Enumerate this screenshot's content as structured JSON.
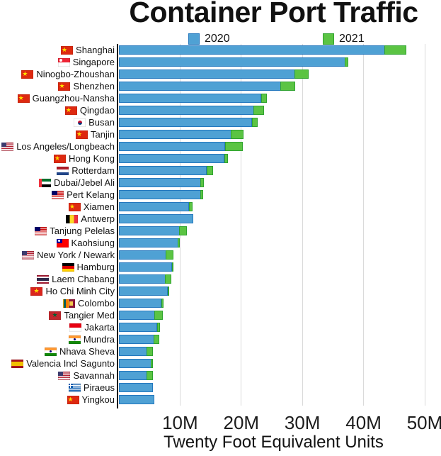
{
  "title": "Container Port Traffic",
  "legend": {
    "items": [
      {
        "label": "2020",
        "color": "#4FA1D4",
        "border": "#2478BE"
      },
      {
        "label": "2021",
        "color": "#5BC443",
        "border": "#2FA32F"
      }
    ]
  },
  "xlabel": "Twenty Foot Equivalent Units",
  "colors": {
    "bar_2020_fill": "#4FA1D4",
    "bar_2020_border": "#2478BE",
    "bar_2021_fill": "#5BC443",
    "bar_2021_border": "#2FA32F",
    "gridline": "#DADADA",
    "axis": "#1A1A1A"
  },
  "chart_data": {
    "type": "bar",
    "orientation": "horizontal",
    "title": "Container Port Traffic",
    "xlabel": "Twenty Foot Equivalent Units",
    "units": "millions of TEU",
    "xlim_m": [
      0,
      50
    ],
    "x_ticks": [
      {
        "label": "10M",
        "value": 10
      },
      {
        "label": "20M",
        "value": 20
      },
      {
        "label": "30M",
        "value": 30
      },
      {
        "label": "40M",
        "value": 40
      },
      {
        "label": "50M",
        "value": 50
      }
    ],
    "grid": true,
    "legend_position": "top",
    "bar_style": "2020 blue bar with green increment segment up to 2021 value",
    "categories": [
      "Shanghai",
      "Singapore",
      "Ninogbo-Zhoushan",
      "Shenzhen",
      "Guangzhou-Nansha",
      "Qingdao",
      "Busan",
      "Tanjin",
      "Los Angeles/Longbeach",
      "Hong Kong",
      "Rotterdam",
      "Dubai/Jebel Ali",
      "Pert Kelang",
      "Xiamen",
      "Antwerp",
      "Tanjung Pelelas",
      "Kaohsiung",
      "New York / Newark",
      "Hamburg",
      "Laem Chabang",
      "Ho Chi Minh City",
      "Colombo",
      "Tangier Med",
      "Jakarta",
      "Mundra",
      "Nhava Sheva",
      "Valencia Incl Sagunto",
      "Savannah",
      "Piraeus",
      "Yingkou"
    ],
    "series": [
      {
        "name": "2020",
        "values": [
          43.5,
          37.0,
          28.8,
          26.5,
          23.3,
          22.1,
          21.8,
          18.4,
          17.4,
          17.3,
          14.4,
          13.4,
          13.4,
          11.5,
          12.1,
          9.9,
          9.7,
          7.7,
          8.7,
          7.6,
          8.0,
          7.0,
          5.9,
          6.3,
          5.75,
          4.6,
          5.3,
          4.6,
          5.5,
          5.8
        ]
      },
      {
        "name": "2021",
        "values": [
          47.0,
          37.6,
          31.1,
          28.9,
          24.3,
          23.8,
          22.8,
          20.4,
          20.3,
          17.9,
          15.4,
          14.0,
          13.8,
          12.1,
          12.1,
          11.2,
          10.0,
          9.0,
          8.8,
          8.6,
          8.1,
          7.3,
          7.2,
          6.8,
          6.65,
          5.6,
          5.6,
          5.6,
          5.5,
          5.8
        ]
      }
    ],
    "ports": [
      {
        "name": "Shanghai",
        "flag": "cn",
        "country": "china",
        "v2020_m": 43.5,
        "v2021_m": 47.0
      },
      {
        "name": "Singapore",
        "flag": "sg",
        "country": "singapore",
        "v2020_m": 37.0,
        "v2021_m": 37.6
      },
      {
        "name": "Ninogbo-Zhoushan",
        "flag": "cn",
        "country": "china",
        "v2020_m": 28.8,
        "v2021_m": 31.1
      },
      {
        "name": "Shenzhen",
        "flag": "cn",
        "country": "china",
        "v2020_m": 26.5,
        "v2021_m": 28.9
      },
      {
        "name": "Guangzhou-Nansha",
        "flag": "cn",
        "country": "china",
        "v2020_m": 23.3,
        "v2021_m": 24.3
      },
      {
        "name": "Qingdao",
        "flag": "cn",
        "country": "china",
        "v2020_m": 22.1,
        "v2021_m": 23.8
      },
      {
        "name": "Busan",
        "flag": "kr",
        "country": "south-korea",
        "v2020_m": 21.8,
        "v2021_m": 22.8
      },
      {
        "name": "Tanjin",
        "flag": "cn",
        "country": "china",
        "v2020_m": 18.4,
        "v2021_m": 20.4
      },
      {
        "name": "Los Angeles/Longbeach",
        "flag": "us",
        "country": "usa",
        "v2020_m": 17.4,
        "v2021_m": 20.3
      },
      {
        "name": "Hong Kong",
        "flag": "cn",
        "country": "china",
        "v2020_m": 17.3,
        "v2021_m": 17.9
      },
      {
        "name": "Rotterdam",
        "flag": "nl",
        "country": "netherlands",
        "v2020_m": 14.4,
        "v2021_m": 15.4
      },
      {
        "name": "Dubai/Jebel Ali",
        "flag": "ae",
        "country": "uae",
        "v2020_m": 13.4,
        "v2021_m": 14.0
      },
      {
        "name": "Pert Kelang",
        "flag": "my",
        "country": "malaysia",
        "v2020_m": 13.4,
        "v2021_m": 13.8
      },
      {
        "name": "Xiamen",
        "flag": "cn",
        "country": "china",
        "v2020_m": 11.5,
        "v2021_m": 12.1
      },
      {
        "name": "Antwerp",
        "flag": "be",
        "country": "belgium",
        "v2020_m": 12.1,
        "v2021_m": 12.1
      },
      {
        "name": "Tanjung Pelelas",
        "flag": "my",
        "country": "malaysia",
        "v2020_m": 9.9,
        "v2021_m": 11.2
      },
      {
        "name": "Kaohsiung",
        "flag": "tw",
        "country": "taiwan",
        "v2020_m": 9.7,
        "v2021_m": 10.0
      },
      {
        "name": "New York / Newark",
        "flag": "us",
        "country": "usa",
        "v2020_m": 7.7,
        "v2021_m": 9.0
      },
      {
        "name": "Hamburg",
        "flag": "de",
        "country": "germany",
        "v2020_m": 8.7,
        "v2021_m": 8.8
      },
      {
        "name": "Laem Chabang",
        "flag": "th",
        "country": "thailand",
        "v2020_m": 7.6,
        "v2021_m": 8.6
      },
      {
        "name": "Ho Chi Minh City",
        "flag": "vn",
        "country": "vietnam",
        "v2020_m": 8.0,
        "v2021_m": 8.1
      },
      {
        "name": "Colombo",
        "flag": "lk",
        "country": "sri-lanka",
        "v2020_m": 7.0,
        "v2021_m": 7.3
      },
      {
        "name": "Tangier Med",
        "flag": "ma",
        "country": "morocco",
        "v2020_m": 5.9,
        "v2021_m": 7.2
      },
      {
        "name": "Jakarta",
        "flag": "id",
        "country": "indonesia",
        "v2020_m": 6.3,
        "v2021_m": 6.8
      },
      {
        "name": "Mundra",
        "flag": "in",
        "country": "india",
        "v2020_m": 5.75,
        "v2021_m": 6.65
      },
      {
        "name": "Nhava Sheva",
        "flag": "in",
        "country": "india",
        "v2020_m": 4.6,
        "v2021_m": 5.6
      },
      {
        "name": "Valencia Incl Sagunto",
        "flag": "es",
        "country": "spain",
        "v2020_m": 5.3,
        "v2021_m": 5.6
      },
      {
        "name": "Savannah",
        "flag": "us",
        "country": "usa",
        "v2020_m": 4.6,
        "v2021_m": 5.6
      },
      {
        "name": "Piraeus",
        "flag": "gr",
        "country": "greece",
        "v2020_m": 5.5,
        "v2021_m": 5.5
      },
      {
        "name": "Yingkou",
        "flag": "cn",
        "country": "china",
        "v2020_m": 5.8,
        "v2021_m": 5.8
      }
    ]
  }
}
